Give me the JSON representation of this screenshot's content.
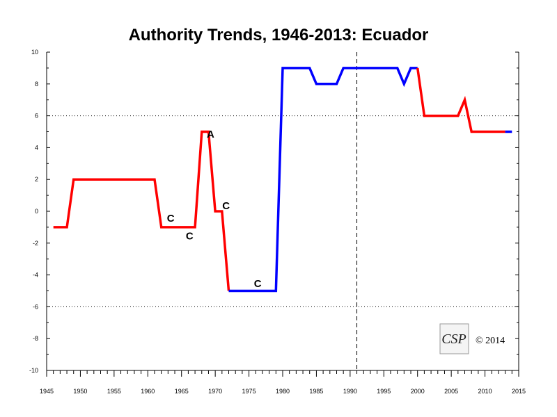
{
  "chart_data": {
    "type": "line",
    "title": "Authority Trends, 1946-2013: Ecuador",
    "xlabel": "",
    "ylabel": "",
    "xlim": [
      1945,
      2015
    ],
    "ylim": [
      -10,
      10
    ],
    "y_ticks": [
      10,
      8,
      6,
      4,
      2,
      0,
      -2,
      -4,
      -6,
      -8,
      -10
    ],
    "x_tick_labels": [
      1945,
      1950,
      1955,
      1960,
      1965,
      1970,
      1975,
      1980,
      1985,
      1990,
      1995,
      2000,
      2005,
      2010,
      2015
    ],
    "reference_lines": {
      "horizontal_dotted": [
        6,
        -6
      ],
      "vertical_dashed": [
        1991
      ]
    },
    "grid": false,
    "series": [
      {
        "color": "#ff0000",
        "points": [
          [
            1946,
            -1
          ],
          [
            1948,
            -1
          ],
          [
            1949,
            2
          ],
          [
            1961,
            2
          ],
          [
            1962,
            -1
          ],
          [
            1967,
            -1
          ],
          [
            1968,
            5
          ],
          [
            1969,
            5
          ],
          [
            1970,
            0
          ],
          [
            1971,
            0
          ],
          [
            1972,
            -5
          ]
        ]
      },
      {
        "color": "#0000ff",
        "points": [
          [
            1972,
            -5
          ],
          [
            1979,
            -5
          ],
          [
            1980,
            9
          ],
          [
            1984,
            9
          ],
          [
            1985,
            8
          ],
          [
            1988,
            8
          ],
          [
            1989,
            9
          ],
          [
            1997,
            9
          ],
          [
            1998,
            8
          ],
          [
            1999,
            9
          ],
          [
            2000,
            9
          ]
        ]
      },
      {
        "color": "#ff0000",
        "points": [
          [
            2000,
            9
          ],
          [
            2001,
            6
          ],
          [
            2006,
            6
          ],
          [
            2007,
            7
          ],
          [
            2008,
            5
          ],
          [
            2013,
            5
          ]
        ]
      },
      {
        "color": "#0000ff",
        "points": [
          [
            2013,
            5
          ],
          [
            2014,
            5
          ]
        ]
      }
    ],
    "annotations": [
      {
        "text": "A",
        "x": 1969.3,
        "y": 4.9
      },
      {
        "text": "C",
        "x": 1963.4,
        "y": -0.4
      },
      {
        "text": "C",
        "x": 1966.2,
        "y": -1.5
      },
      {
        "text": "C",
        "x": 1971.6,
        "y": 0.4
      },
      {
        "text": "C",
        "x": 1976.3,
        "y": -4.5
      }
    ]
  },
  "copyright": "© 2014",
  "logo": {
    "text": "CSP"
  }
}
